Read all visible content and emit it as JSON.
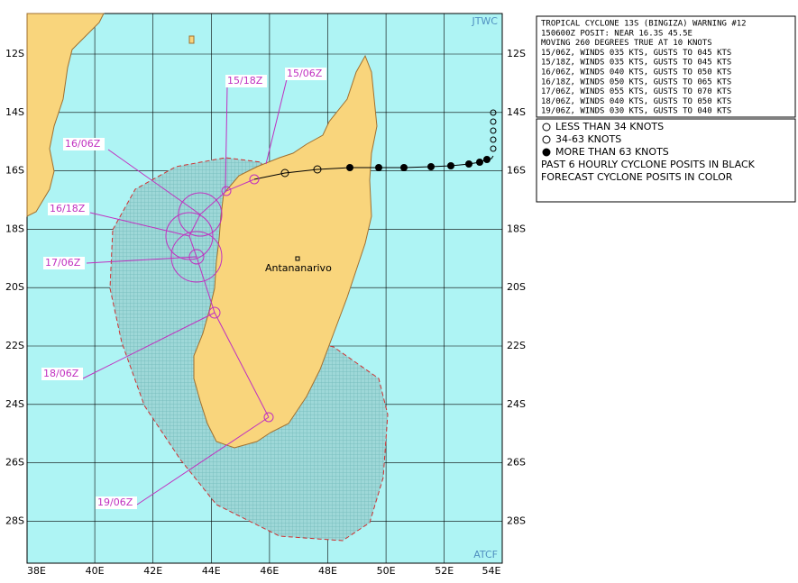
{
  "map": {
    "corner_labels": [
      "JTWC",
      "ATCF"
    ],
    "lat_labels": [
      "12S",
      "14S",
      "16S",
      "18S",
      "20S",
      "22S",
      "24S",
      "26S",
      "28S"
    ],
    "lon_labels": [
      "38E",
      "40E",
      "42E",
      "44E",
      "46E",
      "48E",
      "50E",
      "52E",
      "54E"
    ],
    "city": "Antananarivo",
    "forecast_labels": [
      "15/06Z",
      "15/18Z",
      "16/06Z",
      "16/18Z",
      "17/06Z",
      "18/06Z",
      "19/06Z"
    ]
  },
  "warning": {
    "lines": [
      "TROPICAL CYCLONE 13S (BINGIZA) WARNING #12",
      "150600Z POSIT: NEAR 16.3S 45.5E",
      "MOVING 260 DEGREES TRUE AT 10 KNOTS",
      "15/06Z, WINDS 035 KTS, GUSTS TO 045 KTS",
      "15/18Z, WINDS 035 KTS, GUSTS TO 045 KTS",
      "16/06Z, WINDS 040 KTS, GUSTS TO 050 KTS",
      "16/18Z, WINDS 050 KTS, GUSTS TO 065 KTS",
      "17/06Z, WINDS 055 KTS, GUSTS TO 070 KTS",
      "18/06Z, WINDS 040 KTS, GUSTS TO 050 KTS",
      "19/06Z, WINDS 030 KTS, GUSTS TO 040 KTS"
    ]
  },
  "legend": {
    "items": [
      "LESS THAN 34 KNOTS",
      "34-63 KNOTS",
      "MORE THAN 63 KNOTS",
      "PAST 6 HOURLY CYCLONE POSITS IN BLACK",
      "FORECAST CYCLONE POSITS IN COLOR"
    ]
  }
}
